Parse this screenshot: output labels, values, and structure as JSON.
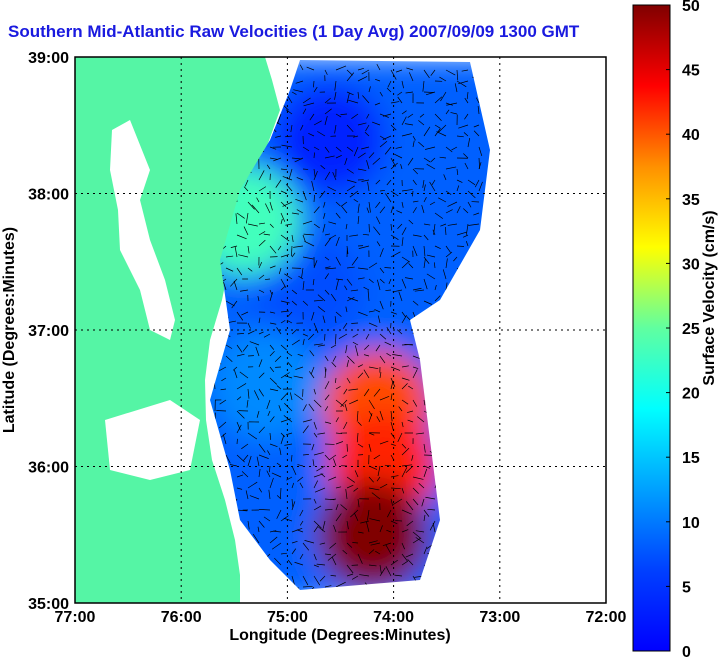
{
  "chart_data": {
    "type": "heatmap",
    "title": "Southern Mid-Atlantic Raw Velocities (1 Day Avg) 2007/09/09 1300 GMT",
    "xlabel": "Longitude (Degrees:Minutes)",
    "ylabel": "Latitude (Degrees:Minutes)",
    "x_ticks": [
      "77:00",
      "76:00",
      "75:00",
      "74:00",
      "73:00",
      "72:00"
    ],
    "y_ticks": [
      "39:00",
      "38:00",
      "37:00",
      "36:00",
      "35:00"
    ],
    "xlim": [
      -77,
      -72
    ],
    "ylim": [
      35,
      39
    ],
    "grid": true,
    "colorbar": {
      "label": "Surface Velocity (cm/s)",
      "ticks": [
        "0",
        "5",
        "10",
        "15",
        "20",
        "25",
        "30",
        "35",
        "40",
        "45",
        "50"
      ],
      "range": [
        0,
        50
      ],
      "colormap": "jet"
    },
    "regions": [
      {
        "lon": -74.6,
        "lat": 38.4,
        "speed": 8
      },
      {
        "lon": -74.8,
        "lat": 37.3,
        "speed": 10
      },
      {
        "lon": -75.2,
        "lat": 36.6,
        "speed": 13
      },
      {
        "lon": -75.4,
        "lat": 37.8,
        "speed": 22
      },
      {
        "lon": -74.15,
        "lat": 36.45,
        "speed": 40
      },
      {
        "lon": -74.1,
        "lat": 36.0,
        "speed": 42
      },
      {
        "lon": -74.2,
        "lat": 35.5,
        "speed": 50
      }
    ],
    "colors": {
      "land": "#55f5a5",
      "title": "#1a1adf"
    }
  }
}
